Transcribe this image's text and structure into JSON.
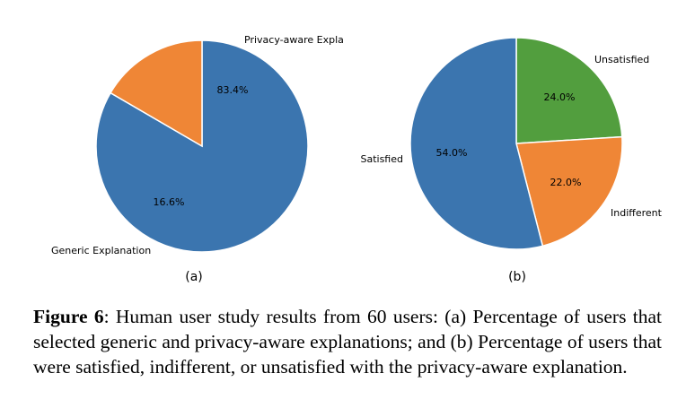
{
  "chart_data": [
    {
      "type": "pie",
      "panel_label": "(a)",
      "slices": [
        {
          "label": "Privacy-aware Explanation",
          "value": 83.4,
          "pct_label": "83.4%",
          "color": "#3b75af"
        },
        {
          "label": "Generic Explanation",
          "value": 16.6,
          "pct_label": "16.6%",
          "color": "#ef8636"
        }
      ]
    },
    {
      "type": "pie",
      "panel_label": "(b)",
      "slices": [
        {
          "label": "Unsatisfied",
          "value": 24.0,
          "pct_label": "24.0%",
          "color": "#529e3e"
        },
        {
          "label": "Indifferent",
          "value": 22.0,
          "pct_label": "22.0%",
          "color": "#ef8636"
        },
        {
          "label": "Satisfied",
          "value": 54.0,
          "pct_label": "54.0%",
          "color": "#3b75af"
        }
      ]
    }
  ],
  "caption": {
    "figure_label": "Figure 6",
    "text": ": Human user study results from 60 users: (a) Percentage of users that selected generic and privacy-aware explanations; and (b) Percentage of users that were satisfied, indifferent, or unsatisfied with the privacy-aware explanation."
  }
}
